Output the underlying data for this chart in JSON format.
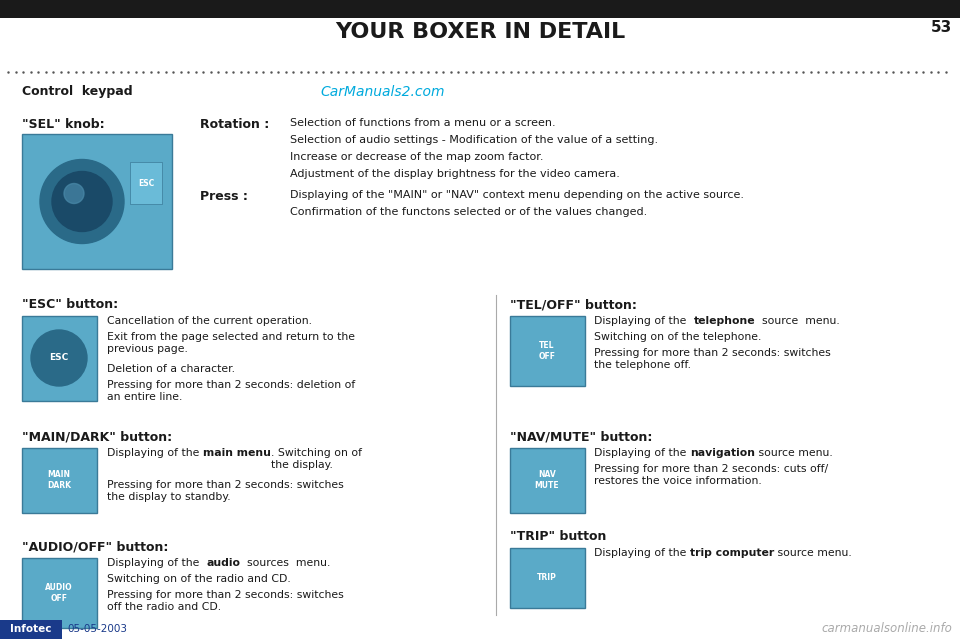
{
  "title": "YOUR BOXER IN DETAIL",
  "page_number": "53",
  "watermark": "CarManuals2.com",
  "watermark_color": "#00aadd",
  "footer_left_box_color": "#1a3a8a",
  "footer_left_box_text": "Infotec",
  "footer_date": "05-05-2003",
  "footer_right": "carmanualsonline.info",
  "section_title": "Control  keypad",
  "bg_color": "#ffffff",
  "sel_knob_label": "\"SEL\" knob:",
  "sel_rotation_label": "Rotation :",
  "sel_rotation_lines": [
    "Selection of functions from a menu or a screen.",
    "Selection of audio settings - Modification of the value of a setting.",
    "Increase or decrease of the map zoom factor.",
    "Adjustment of the display brightness for the video camera."
  ],
  "sel_press_label": "Press :",
  "sel_press_lines": [
    "Displaying of the \"MAIN\" or \"NAV\" context menu depending on the active source.",
    "Confirmation of the functons selected or of the values changed."
  ],
  "esc_label": "\"ESC\" button:",
  "esc_lines": [
    "Cancellation of the current operation.",
    "Exit from the page selected and return to the\nprevious page.",
    "Deletion of a character.",
    "Pressing for more than 2 seconds: deletion of\nan entire line."
  ],
  "main_label": "\"MAIN/DARK\" button:",
  "main_line1_plain": "Displaying of the ",
  "main_line1_bold": "main menu",
  "main_line1_end": ". Switching on of\nthe display.",
  "main_line2": "Pressing for more than 2 seconds: switches\nthe display to standby.",
  "audio_label": "\"AUDIO/OFF\" button:",
  "audio_line1_plain": "Displaying of the  ",
  "audio_line1_bold": "audio",
  "audio_line1_end": "  sources  menu.",
  "audio_line2": "Switching on of the radio and CD.",
  "audio_line3": "Pressing for more than 2 seconds: switches\noff the radio and CD.",
  "tel_label": "\"TEL/OFF\" button:",
  "tel_line1_plain": "Displaying of the  ",
  "tel_line1_bold": "telephone",
  "tel_line1_end": "  source  menu.",
  "tel_line2": "Switching on of the telephone.",
  "tel_line3": "Pressing for more than 2 seconds: switches\nthe telephone off.",
  "nav_label": "\"NAV/MUTE\" button:",
  "nav_line1_plain": "Displaying of the ",
  "nav_line1_bold": "navigation",
  "nav_line1_end": " source menu.",
  "nav_line2": "Pressing for more than 2 seconds: cuts off/\nrestores the voice information.",
  "trip_label": "\"TRIP\" button",
  "trip_line1_plain": "Displaying of the ",
  "trip_line1_bold": "trip computer",
  "trip_line1_end": " source menu.",
  "img_color": "#5aaac8",
  "img_edge_color": "#3a7a98",
  "text_color": "#1a1a1a",
  "label_color": "#333333"
}
